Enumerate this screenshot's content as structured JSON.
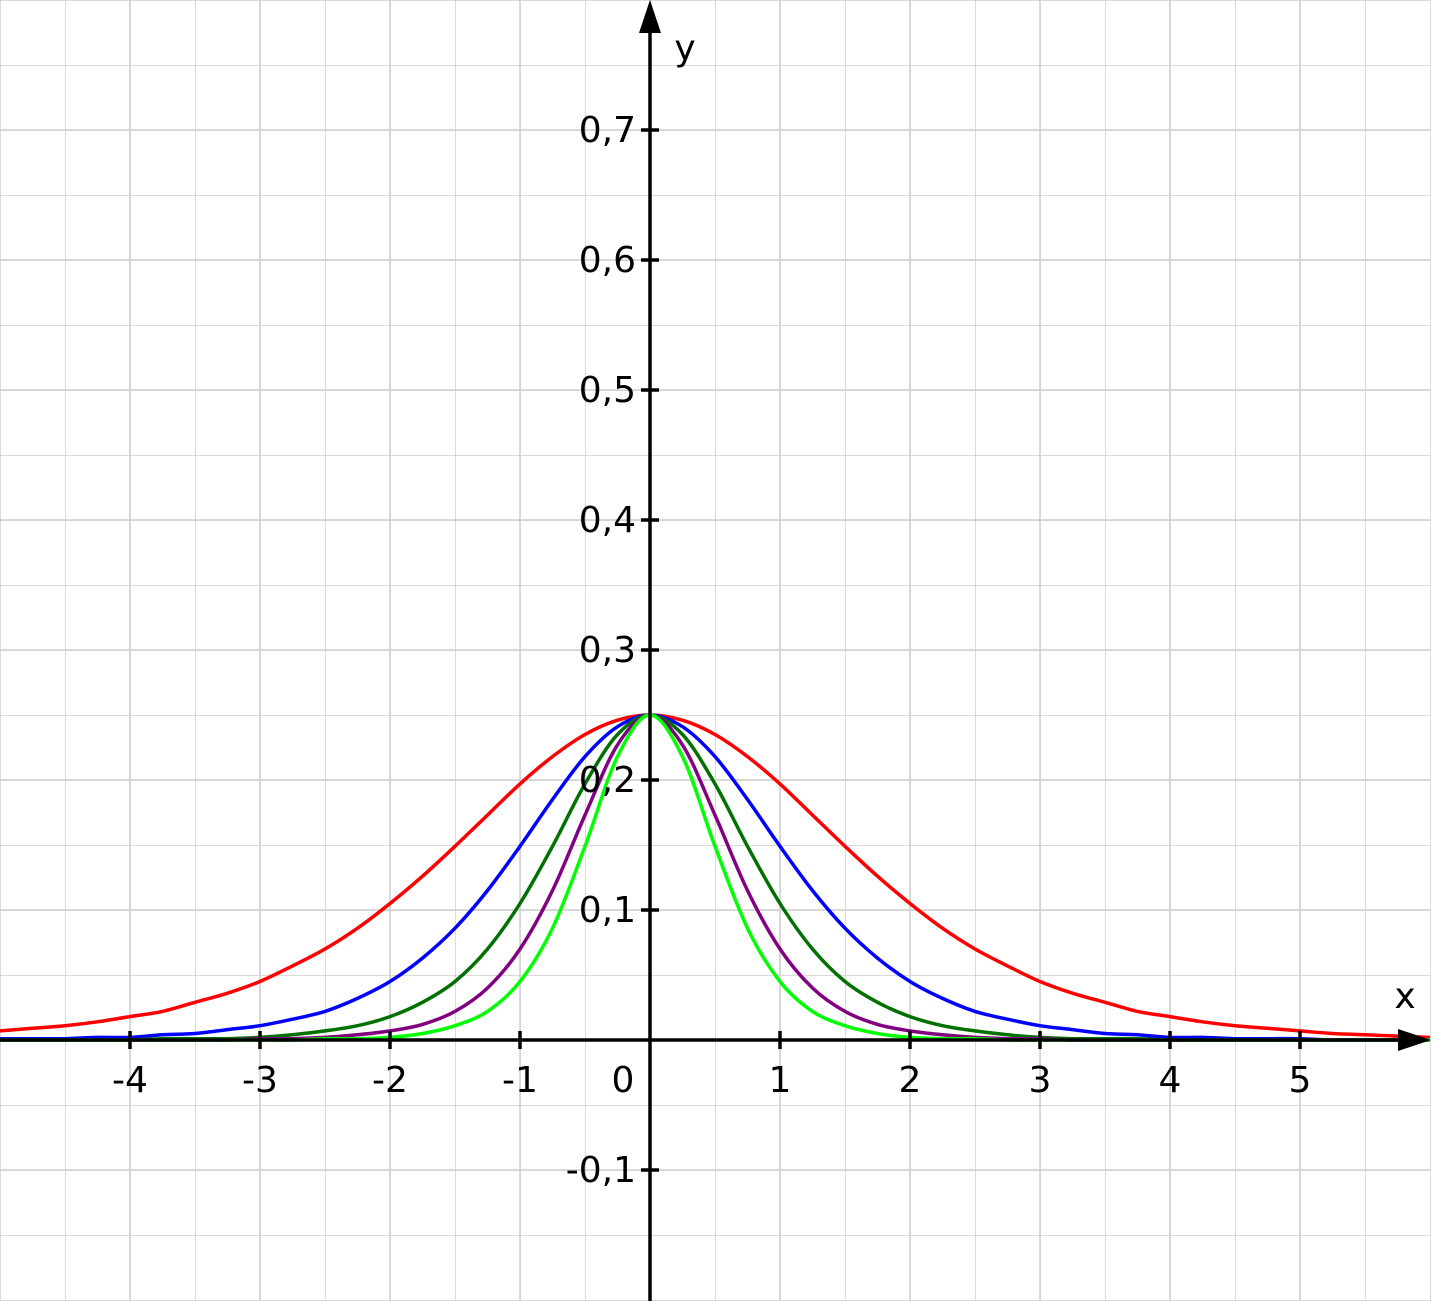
{
  "chart_data": {
    "type": "line",
    "x_label": "x",
    "y_label": "y",
    "x": [
      -5,
      -4.75,
      -4.5,
      -4.25,
      -4,
      -3.75,
      -3.5,
      -3.25,
      -3,
      -2.75,
      -2.5,
      -2.25,
      -2,
      -1.75,
      -1.5,
      -1.25,
      -1,
      -0.75,
      -0.5,
      -0.25,
      0,
      0.25,
      0.5,
      0.75,
      1,
      1.25,
      1.5,
      1.75,
      2,
      2.25,
      2.5,
      2.75,
      3,
      3.25,
      3.5,
      3.75,
      4,
      4.25,
      4.5,
      4.75,
      5,
      5.25,
      5.5,
      5.75,
      6
    ],
    "series": [
      {
        "color": "#ff0000",
        "values": [
          0.007,
          0.009,
          0.011,
          0.014,
          0.018,
          0.022,
          0.029,
          0.036,
          0.045,
          0.057,
          0.07,
          0.086,
          0.105,
          0.126,
          0.149,
          0.173,
          0.197,
          0.218,
          0.235,
          0.246,
          0.25,
          0.246,
          0.235,
          0.218,
          0.197,
          0.173,
          0.149,
          0.126,
          0.105,
          0.086,
          0.07,
          0.057,
          0.045,
          0.036,
          0.029,
          0.022,
          0.018,
          0.014,
          0.011,
          0.009,
          0.007,
          0.005,
          0.004,
          0.003,
          0.002
        ]
      },
      {
        "color": "#0000ff",
        "values": [
          0.001,
          0.001,
          0.001,
          0.002,
          0.002,
          0.004,
          0.005,
          0.008,
          0.011,
          0.016,
          0.022,
          0.032,
          0.045,
          0.063,
          0.086,
          0.115,
          0.149,
          0.185,
          0.218,
          0.241,
          0.25,
          0.241,
          0.218,
          0.185,
          0.149,
          0.115,
          0.086,
          0.063,
          0.045,
          0.032,
          0.022,
          0.016,
          0.011,
          0.008,
          0.005,
          0.004,
          0.002,
          0.002,
          0.001,
          0.001,
          0.001,
          0,
          0,
          0,
          0
        ]
      },
      {
        "color": "#007000",
        "values": [
          0,
          0,
          0,
          0,
          0,
          0.001,
          0.001,
          0.001,
          0.002,
          0.004,
          0.007,
          0.011,
          0.018,
          0.029,
          0.045,
          0.07,
          0.105,
          0.149,
          0.197,
          0.235,
          0.25,
          0.235,
          0.197,
          0.149,
          0.105,
          0.07,
          0.045,
          0.029,
          0.018,
          0.011,
          0.007,
          0.004,
          0.002,
          0.001,
          0.001,
          0.001,
          0,
          0,
          0,
          0,
          0,
          0,
          0,
          0,
          0
        ]
      },
      {
        "color": "#800080",
        "values": [
          0,
          0,
          0,
          0,
          0,
          0,
          0,
          0,
          0.001,
          0.001,
          0.002,
          0.004,
          0.007,
          0.012,
          0.022,
          0.04,
          0.07,
          0.115,
          0.173,
          0.227,
          0.25,
          0.227,
          0.173,
          0.115,
          0.07,
          0.04,
          0.022,
          0.012,
          0.007,
          0.004,
          0.002,
          0.001,
          0.001,
          0,
          0,
          0,
          0,
          0,
          0,
          0,
          0,
          0,
          0,
          0,
          0
        ]
      },
      {
        "color": "#00ff00",
        "values": [
          0,
          0,
          0,
          0,
          0,
          0,
          0,
          0,
          0,
          0,
          0.001,
          0.001,
          0.002,
          0.005,
          0.011,
          0.022,
          0.045,
          0.086,
          0.149,
          0.218,
          0.25,
          0.218,
          0.149,
          0.086,
          0.045,
          0.022,
          0.011,
          0.005,
          0.002,
          0.001,
          0.001,
          0,
          0,
          0,
          0,
          0,
          0,
          0,
          0,
          0,
          0,
          0,
          0,
          0,
          0
        ]
      }
    ],
    "xlim": [
      -5,
      6
    ],
    "ylim": [
      -0.2,
      0.8
    ],
    "xticks": [
      -4,
      -3,
      -2,
      -1,
      0,
      1,
      2,
      3,
      4,
      5
    ],
    "yticks": [
      {
        "value": -0.1,
        "label": "-0,1"
      },
      {
        "value": 0.1,
        "label": "0,1"
      },
      {
        "value": 0.2,
        "label": "0,2"
      },
      {
        "value": 0.3,
        "label": "0,3"
      },
      {
        "value": 0.4,
        "label": "0,4"
      },
      {
        "value": 0.5,
        "label": "0,5"
      },
      {
        "value": 0.6,
        "label": "0,6"
      },
      {
        "value": 0.7,
        "label": "0,7"
      }
    ],
    "grid": true
  }
}
